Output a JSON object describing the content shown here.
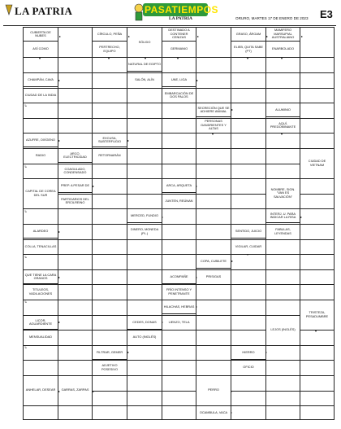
{
  "header": {
    "logo": "LA PATRIA",
    "banner_title": "PASATIEMPOS",
    "banner_sub": "LA PATRIA",
    "date": "ORURO, MARTES 17 DE ENERO DE 2023",
    "page": "E3"
  },
  "clues": {
    "c1": "CUBIERTA DE NUBES",
    "c2": "ASÍ COMO",
    "c3": "CÍRCULO, PEÑA",
    "c4": "PERTRECHO, EQUIPO",
    "c5": "SÓLIDO",
    "c6": "DESTINADO A CONTENER CENIZAS",
    "c7": "GERMANIO",
    "c8": "GRASO, ÁRGAM",
    "c9": "ELIEB, QUITA SABE (PT)",
    "c10": "MAMIFERO MARSUPIAL AUSTRALIANO",
    "c11": "ENARBOLADO",
    "c12": "NATURAL DE EGIPTO",
    "c13": "SALÓN, ALÍN",
    "c14": "CHAMPÁN, CAVA",
    "c15": "CIUDAD DE LA INDIA",
    "c16": "UNE, LIGA",
    "c17": "EMBARCACIÓN DE DOS PALOS",
    "c18": "SECRECIÓN QUE SE ADHIERE ANIMAL",
    "c19": "PERSONAS GANDRIENTES Y ALTAS",
    "c20": "ALUMINIO",
    "c21": "AQUÍ, PREDOMINANTE",
    "c22": "AZUFRE, OXÍGENO",
    "c23": "RADIO",
    "c24": "EXCUSA, SUBTERFUGIO",
    "c25": "RETORNARÁN",
    "c26": "ARCO, ELECTRICIDAD",
    "c27": "COAGULADO, CONDENSADO",
    "c28": "CIUDAD DE VIETNAM",
    "c29": "CAPITAL DE COREA DEL SUR",
    "c30": "PREP. A PESAR DE",
    "c31": "PARTIDARIOS DEL ERCILREINO",
    "c32": "ARCA, ARQUETA",
    "c33": "JUNTEN, REÚNAN",
    "c34": "NOMBRE, SIGN. \"VAN ES SALVACIÓN\"",
    "c35": "MERCED, FUNDIO",
    "c36": "DINERO, MONEDA (PL.)",
    "c37": "INTERJ. U. PARA INDICAR LA RISA",
    "c38": "FABULAS, LEYENDAS",
    "c39": "ALARDEO",
    "c40": "COLLA, TENACILLAS",
    "c41": "SENTIDO, JUICIO",
    "c42": "VIGILAR, CUIDAR",
    "c43": "COPA, CUBILETE",
    "c44": "PRISIGAS",
    "c45": "QUE TIENE LA CARA GRANOS",
    "c46": "TITULEOS, VADILACIONES",
    "c47": "ACOMPAÑE",
    "c48": "FRÍO INTENSO Y PENETRANTE",
    "c49": "HILACHAS, HEBRAS",
    "c50": "LIENZO, TELA",
    "c51": "TRISTEZA, PESADUMBRE",
    "c52": "LICOR, AGUARDIENTE",
    "c53": "MENSUALIDAD",
    "c54": "CEDES, DONAS",
    "c55": "AUTO (INGLÉS)",
    "c56": "LEJOS (INGLÉS)",
    "c57": "FILTRAR, GEMER",
    "c58": "ADJETIVO POSESIVO",
    "c59": "HIERRO",
    "c60": "OFICIO",
    "c61": "ANHELAR, DESEAR",
    "c62": "GARRAS, ZARPAS",
    "c63": "PERRO",
    "c64": "OCAMBULA, VACA"
  }
}
